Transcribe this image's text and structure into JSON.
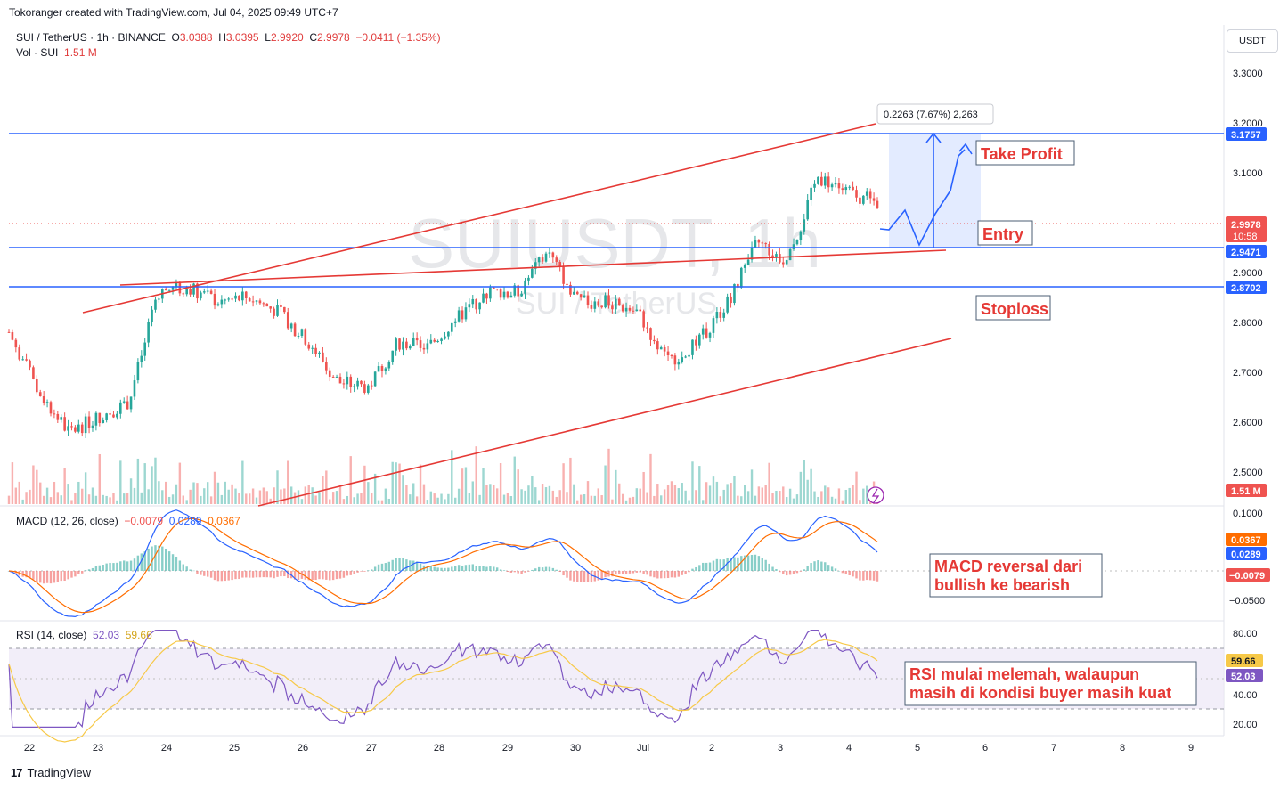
{
  "header": {
    "credit": "Tokoranger created with TradingView.com, Jul 04, 2025 09:49 UTC+7"
  },
  "legend": {
    "symbol": "SUI / TetherUS · 1h · BINANCE",
    "o_label": "O",
    "o_value": "3.0388",
    "h_label": "H",
    "h_value": "3.0395",
    "l_label": "L",
    "l_value": "2.9920",
    "c_label": "C",
    "c_value": "2.9978",
    "change": "−0.0411 (−1.35%)",
    "vol_label": "Vol · SUI",
    "vol_value": "1.51 M"
  },
  "watermark": {
    "ticker": "SUIUSDT, 1h",
    "name": "SUI / TetherUS"
  },
  "currency_button": "USDT",
  "price_axis": {
    "ticks": [
      "3.3000",
      "3.2000",
      "3.1000",
      "3.0000",
      "2.9000",
      "2.8000",
      "2.7000",
      "2.6000",
      "2.5000"
    ]
  },
  "price_labels": {
    "take_profit_level": "3.1757",
    "current": "2.9978",
    "countdown": "10:58",
    "entry_level": "2.9471",
    "stop_level": "2.8702",
    "volume": "1.51 M"
  },
  "annotations": {
    "measure": "0.2263 (7.67%) 2,263",
    "take_profit": "Take Profit",
    "entry": "Entry",
    "stoploss": "Stoploss",
    "macd_note": [
      "MACD reversal dari",
      "bullish ke bearish"
    ],
    "rsi_note": [
      "RSI mulai melemah, walaupun",
      "masih di kondisi buyer masih kuat"
    ]
  },
  "macd": {
    "title": "MACD (12, 26, close)",
    "hist": "−0.0079",
    "macd": "0.0289",
    "signal": "0.0367",
    "axis_ticks": [
      "0.1000",
      "−0.0500"
    ]
  },
  "rsi": {
    "title": "RSI (14, close)",
    "value": "52.03",
    "ma": "59.66",
    "axis_ticks": [
      "80.00",
      "40.00",
      "20.00"
    ]
  },
  "time_axis": {
    "ticks": [
      "22",
      "23",
      "24",
      "25",
      "26",
      "27",
      "28",
      "29",
      "30",
      "Jul",
      "2",
      "3",
      "4",
      "5",
      "6",
      "7",
      "8",
      "9"
    ]
  },
  "footer": {
    "brand": "TradingView"
  },
  "colors": {
    "up": "#26a69a",
    "down": "#ef5350",
    "hline": "#2962ff",
    "trend": "#e53935",
    "macd_line": "#2962ff",
    "signal_line": "#ff6d00",
    "rsi_line": "#7e57c2",
    "rsi_ma": "#f7c948"
  },
  "chart_data": [
    {
      "type": "candlestick",
      "title": "SUI / TetherUS · 1h · BINANCE",
      "ylim": [
        2.4,
        3.35
      ],
      "x_ticks": [
        "22",
        "23",
        "24",
        "25",
        "26",
        "27",
        "28",
        "29",
        "30",
        "Jul",
        "2",
        "3",
        "4",
        "5",
        "6",
        "7",
        "8",
        "9"
      ],
      "last": {
        "open": 3.0388,
        "high": 3.0395,
        "low": 2.992,
        "close": 2.9978,
        "change": -0.0411,
        "change_pct": -1.35
      },
      "key_levels": {
        "take_profit": 3.1757,
        "entry": 2.9471,
        "stoploss": 2.8702
      },
      "projection": {
        "change": 0.2263,
        "change_pct": 7.67
      },
      "close_path": [
        {
          "x": "22",
          "y": 2.74
        },
        {
          "x": "22.5",
          "y": 2.62
        },
        {
          "x": "23",
          "y": 2.54
        },
        {
          "x": "23.5",
          "y": 2.57
        },
        {
          "x": "24",
          "y": 2.6
        },
        {
          "x": "24.3",
          "y": 2.82
        },
        {
          "x": "24.6",
          "y": 2.83
        },
        {
          "x": "25",
          "y": 2.8
        },
        {
          "x": "25.5",
          "y": 2.81
        },
        {
          "x": "26",
          "y": 2.78
        },
        {
          "x": "26.5",
          "y": 2.72
        },
        {
          "x": "27",
          "y": 2.64
        },
        {
          "x": "27.5",
          "y": 2.63
        },
        {
          "x": "28",
          "y": 2.72
        },
        {
          "x": "28.5",
          "y": 2.71
        },
        {
          "x": "29",
          "y": 2.77
        },
        {
          "x": "29.5",
          "y": 2.82
        },
        {
          "x": "30",
          "y": 2.82
        },
        {
          "x": "30.3",
          "y": 2.9
        },
        {
          "x": "30.7",
          "y": 2.8
        },
        {
          "x": "Jul",
          "y": 2.8
        },
        {
          "x": "1.5",
          "y": 2.78
        },
        {
          "x": "2",
          "y": 2.68
        },
        {
          "x": "2.5",
          "y": 2.72
        },
        {
          "x": "2.9",
          "y": 2.8
        },
        {
          "x": "3",
          "y": 2.92
        },
        {
          "x": "3.3",
          "y": 2.88
        },
        {
          "x": "3.6",
          "y": 3.05
        },
        {
          "x": "4",
          "y": 3.02
        },
        {
          "x": "4.3",
          "y": 2.9978
        }
      ]
    },
    {
      "type": "bar",
      "title": "Vol · SUI",
      "last_value": "1.51 M"
    },
    {
      "type": "line",
      "title": "MACD (12, 26, close)",
      "series": [
        {
          "name": "MACD",
          "last": 0.0289
        },
        {
          "name": "Signal",
          "last": 0.0367
        },
        {
          "name": "Histogram",
          "last": -0.0079
        }
      ],
      "ylim": [
        -0.06,
        0.11
      ]
    },
    {
      "type": "line",
      "title": "RSI (14, close)",
      "series": [
        {
          "name": "RSI",
          "last": 52.03
        },
        {
          "name": "RSI MA",
          "last": 59.66
        }
      ],
      "ylim": [
        15,
        85
      ],
      "bands": [
        30,
        70
      ]
    }
  ]
}
